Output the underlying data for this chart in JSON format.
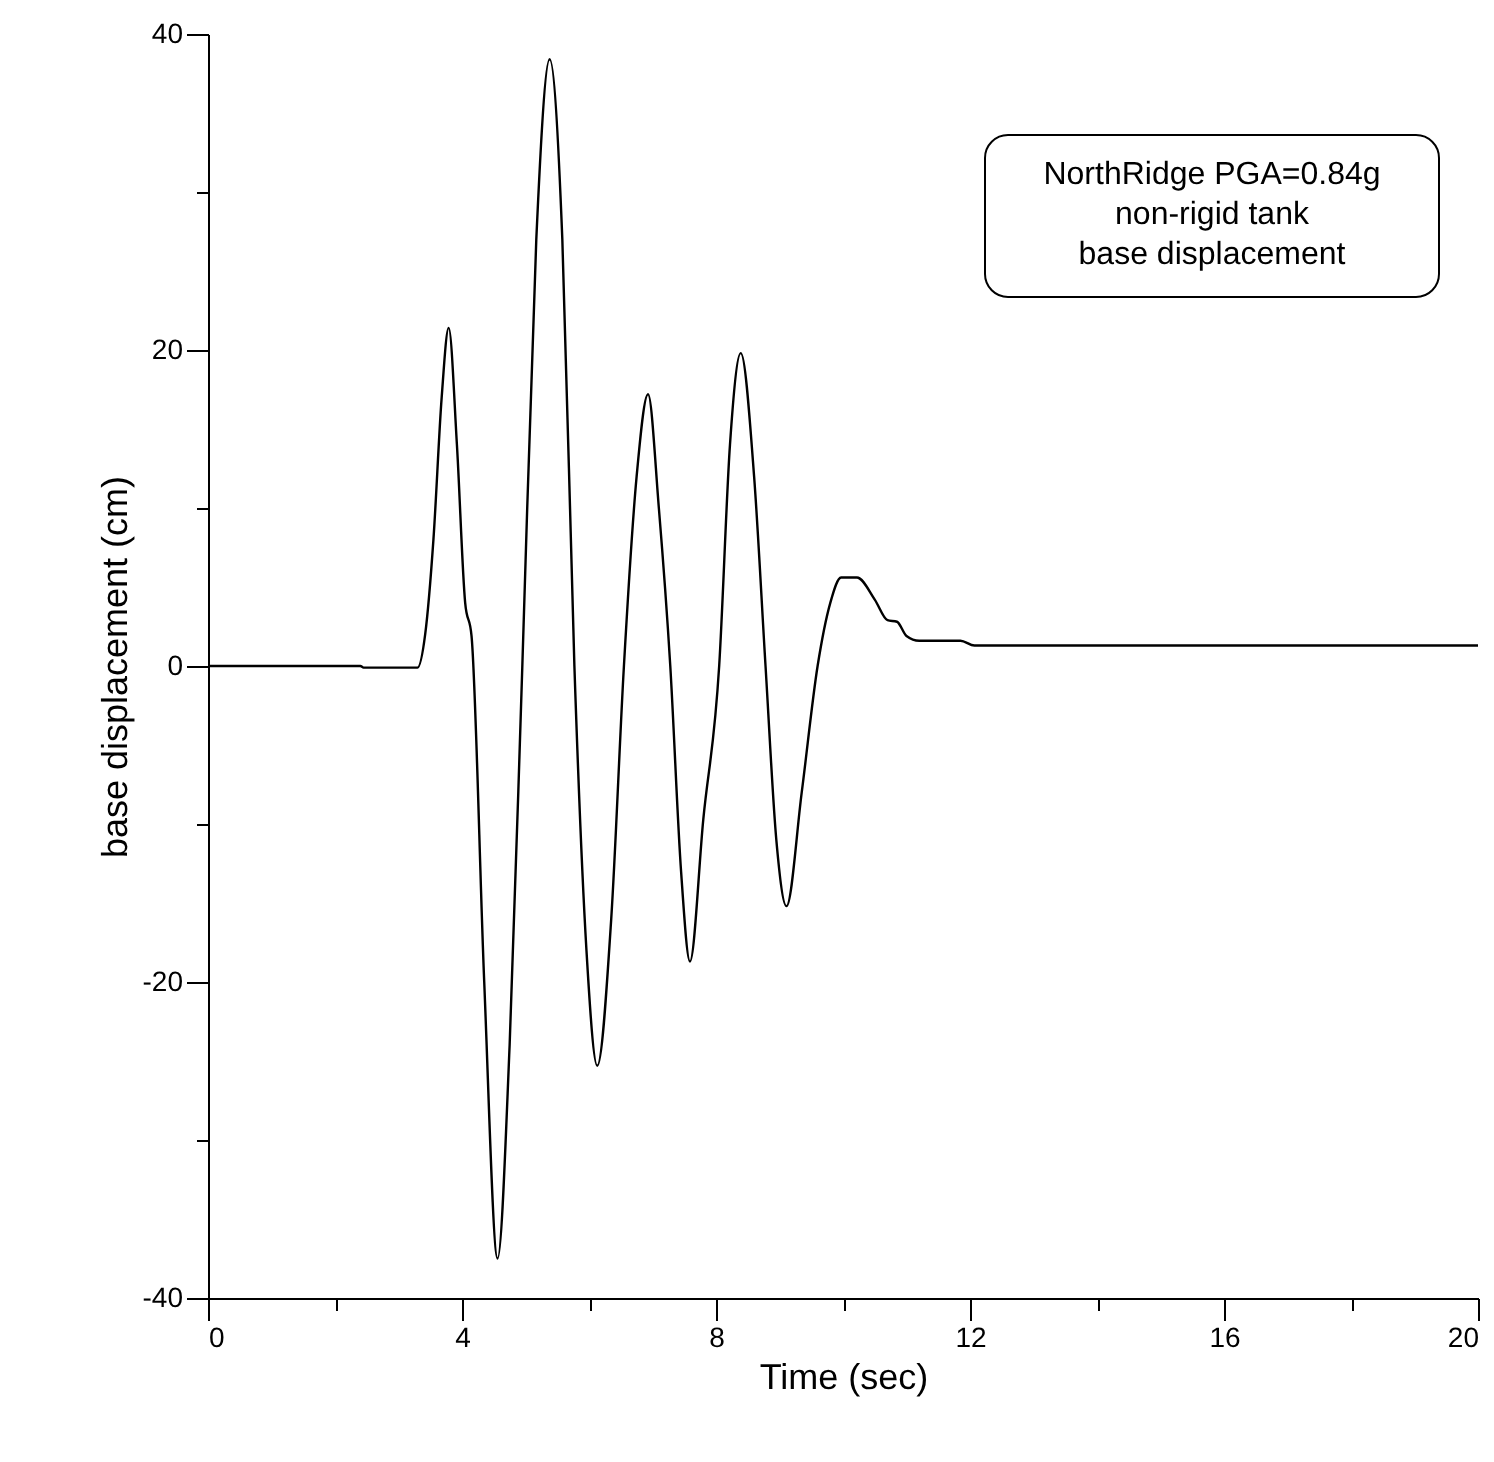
{
  "chart_data": {
    "type": "line",
    "xlabel": "Time (sec)",
    "ylabel": "base displacement (cm)",
    "annotations": [
      "NorthRidge PGA=0.84g\nnon-rigid tank\nbase displacement"
    ],
    "x": [
      0,
      2.4,
      2.45,
      3.3,
      3.42,
      3.55,
      3.68,
      3.79,
      3.92,
      4.05,
      4.15,
      4.35,
      4.56,
      4.75,
      4.95,
      5.17,
      5.38,
      5.58,
      5.77,
      5.96,
      6.13,
      6.35,
      6.55,
      6.75,
      6.93,
      7.1,
      7.28,
      7.45,
      7.59,
      7.8,
      8.05,
      8.22,
      8.39,
      8.6,
      8.78,
      8.95,
      9.11,
      9.35,
      9.6,
      9.8,
      9.97,
      10.22,
      10.5,
      10.7,
      10.85,
      11.0,
      11.2,
      11.85,
      12.07,
      20
    ],
    "series": [
      {
        "color": "#000000",
        "values": [
          0,
          0,
          -0.1,
          -0.1,
          2,
          8,
          17,
          21.4,
          14,
          4,
          1.9,
          -20,
          -37.5,
          -24,
          0,
          27,
          38.4,
          27,
          0,
          -18,
          -25.3,
          -16,
          0,
          12,
          17.2,
          10,
          0,
          -13,
          -18.7,
          -9.7,
          0,
          14,
          19.8,
          12,
          0,
          -11,
          -15.2,
          -8,
          0,
          4,
          5.6,
          5.6,
          4.2,
          2.9,
          2.8,
          1.9,
          1.6,
          1.6,
          1.3,
          1.3
        ]
      }
    ],
    "xlim": [
      0,
      20
    ],
    "xticks": [
      0,
      {
        "value": 2,
        "label": null
      },
      4,
      {
        "value": 6,
        "label": null
      },
      8,
      {
        "value": 10,
        "label": null
      },
      12,
      {
        "value": 14,
        "label": null
      },
      16,
      {
        "value": 18,
        "label": null
      },
      20
    ],
    "ylim": [
      -40,
      40
    ],
    "yticks": [
      -40,
      {
        "value": -30,
        "label": null
      },
      -20,
      {
        "value": -10,
        "label": null
      },
      0,
      {
        "value": 10,
        "label": null
      },
      20,
      {
        "value": 30,
        "label": null
      },
      40
    ],
    "grid": false,
    "marker": "none",
    "line_style": "solid"
  }
}
